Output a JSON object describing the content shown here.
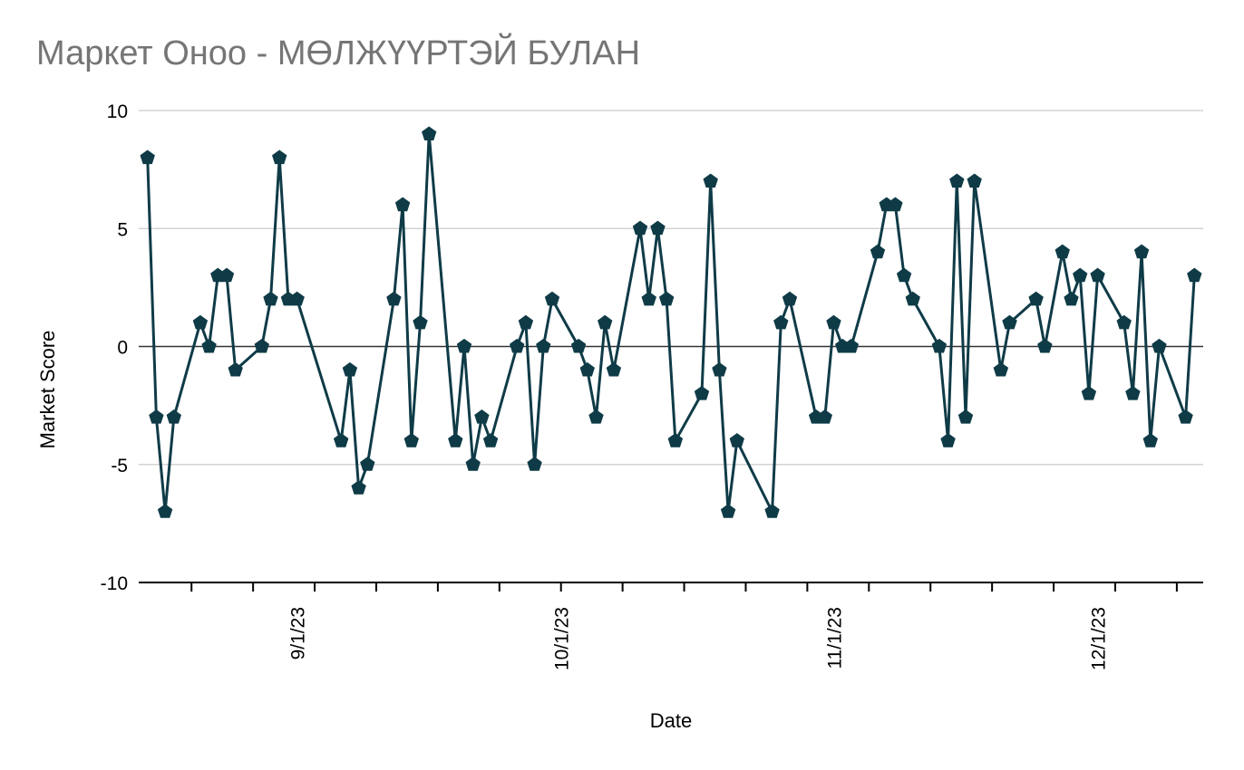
{
  "chart_data": {
    "type": "line",
    "title": "Маркет Оноо - МӨЛЖҮҮРТЭЙ БУЛАН",
    "xlabel": "Date",
    "ylabel": "Market Score",
    "ylim": [
      -10,
      10
    ],
    "yticks": [
      "10",
      "5",
      "0",
      "-5",
      "-10"
    ],
    "xticks": [
      "9/1/23",
      "10/1/23",
      "11/1/23",
      "12/1/23"
    ],
    "grid": true,
    "legend": "none",
    "marker": "pentagon",
    "colors": {
      "line": "#0f3b47",
      "grid": "#cccccc",
      "zero_line": "#333333",
      "axis": "#000000",
      "title": "#757575"
    },
    "x": [
      "2023-08-15",
      "2023-08-16",
      "2023-08-17",
      "2023-08-18",
      "2023-08-21",
      "2023-08-22",
      "2023-08-23",
      "2023-08-24",
      "2023-08-25",
      "2023-08-28",
      "2023-08-29",
      "2023-08-30",
      "2023-08-31",
      "2023-09-01",
      "2023-09-06",
      "2023-09-07",
      "2023-09-08",
      "2023-09-09",
      "2023-09-12",
      "2023-09-13",
      "2023-09-14",
      "2023-09-15",
      "2023-09-16",
      "2023-09-19",
      "2023-09-20",
      "2023-09-21",
      "2023-09-22",
      "2023-09-23",
      "2023-09-26",
      "2023-09-27",
      "2023-09-28",
      "2023-09-29",
      "2023-09-30",
      "2023-10-03",
      "2023-10-04",
      "2023-10-05",
      "2023-10-06",
      "2023-10-07",
      "2023-10-10",
      "2023-10-11",
      "2023-10-12",
      "2023-10-13",
      "2023-10-14",
      "2023-10-17",
      "2023-10-18",
      "2023-10-19",
      "2023-10-20",
      "2023-10-21",
      "2023-10-25",
      "2023-10-26",
      "2023-10-27",
      "2023-10-30",
      "2023-10-31",
      "2023-11-01",
      "2023-11-02",
      "2023-11-03",
      "2023-11-06",
      "2023-11-07",
      "2023-11-08",
      "2023-11-09",
      "2023-11-10",
      "2023-11-13",
      "2023-11-14",
      "2023-11-15",
      "2023-11-16",
      "2023-11-17",
      "2023-11-20",
      "2023-11-21",
      "2023-11-24",
      "2023-11-25",
      "2023-11-27",
      "2023-11-28",
      "2023-11-29",
      "2023-11-30",
      "2023-12-01",
      "2023-12-04",
      "2023-12-05",
      "2023-12-06",
      "2023-12-07",
      "2023-12-08",
      "2023-12-11",
      "2023-12-12"
    ],
    "series": [
      {
        "values": [
          8,
          -3,
          -7,
          -3,
          1,
          0,
          3,
          3,
          -1,
          0,
          2,
          8,
          2,
          2,
          -4,
          -1,
          -6,
          -5,
          2,
          6,
          -4,
          1,
          9,
          -4,
          0,
          -5,
          -3,
          -4,
          0,
          1,
          -5,
          0,
          2,
          0,
          -1,
          -3,
          1,
          -1,
          5,
          2,
          5,
          2,
          -4,
          -2,
          7,
          -1,
          -7,
          -4,
          -7,
          1,
          2,
          -3,
          -3,
          1,
          0,
          0,
          4,
          6,
          6,
          3,
          2,
          0,
          -4,
          7,
          -3,
          7,
          -1,
          1,
          2,
          0,
          4,
          2,
          3,
          -2,
          3,
          1,
          -2,
          4,
          -4,
          0,
          -3,
          3
        ]
      }
    ]
  }
}
